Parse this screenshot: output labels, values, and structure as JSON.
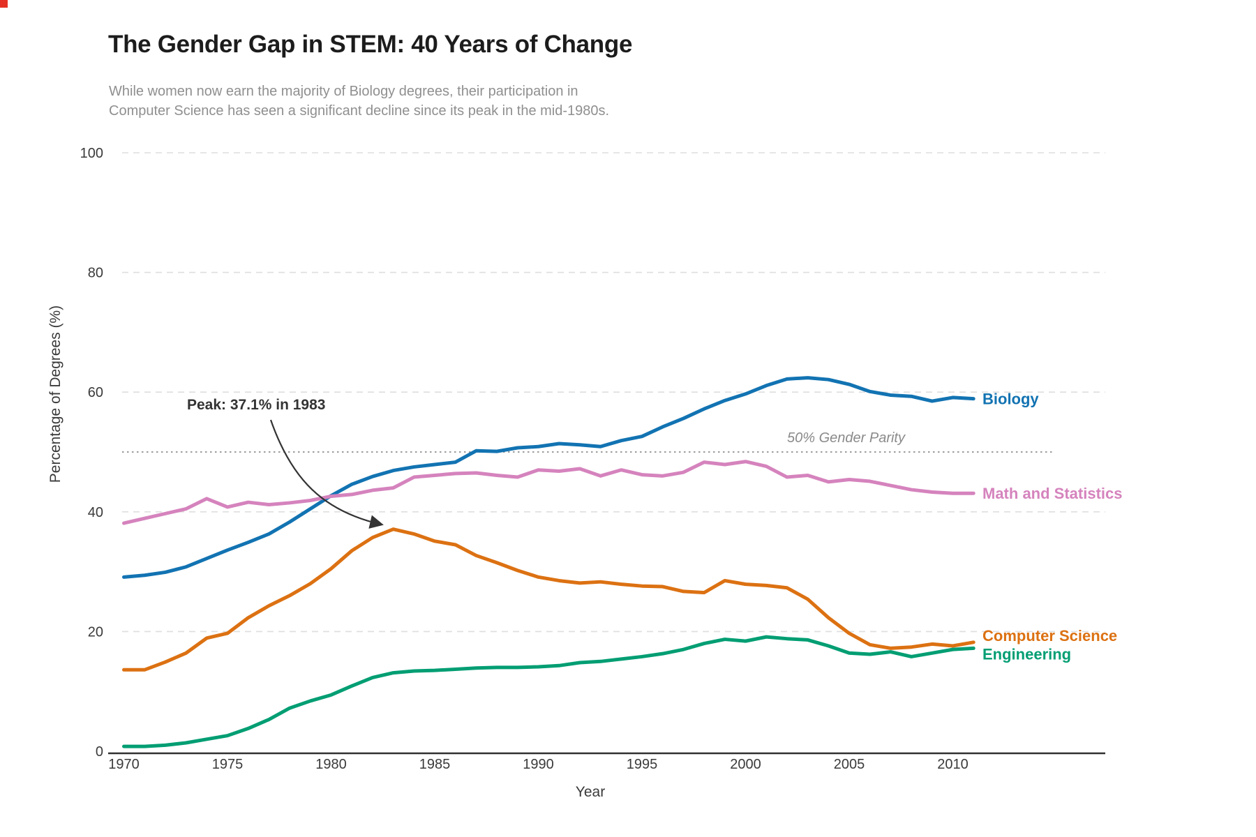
{
  "header": {
    "title": "The Gender Gap in STEM: 40 Years of Change",
    "subtitle_line1": "While women now earn the majority of Biology degrees, their participation in",
    "subtitle_line2": "Computer Science has seen a significant decline since its peak in the mid-1980s."
  },
  "chart_data": {
    "type": "line",
    "title": "The Gender Gap in STEM: 40 Years of Change",
    "xlabel": "Year",
    "ylabel": "Percentage of Degrees (%)",
    "xlim": [
      1970,
      2014.5
    ],
    "ylim": [
      0,
      100
    ],
    "xticks": [
      1970,
      1975,
      1980,
      1985,
      1990,
      1995,
      2000,
      2005,
      2010
    ],
    "yticks": [
      0,
      20,
      40,
      60,
      80,
      100
    ],
    "grid": "horizontal dashed at yticks, dotted reference at 50, legend as direct line labels right",
    "x": [
      1970,
      1971,
      1972,
      1973,
      1974,
      1975,
      1976,
      1977,
      1978,
      1979,
      1980,
      1981,
      1982,
      1983,
      1984,
      1985,
      1986,
      1987,
      1988,
      1989,
      1990,
      1991,
      1992,
      1993,
      1994,
      1995,
      1996,
      1997,
      1998,
      1999,
      2000,
      2001,
      2002,
      2003,
      2004,
      2005,
      2006,
      2007,
      2008,
      2009,
      2010,
      2011
    ],
    "series": [
      {
        "name": "Biology",
        "color": "#1273b2",
        "values": [
          29.1,
          29.4,
          29.9,
          30.8,
          32.2,
          33.6,
          34.9,
          36.3,
          38.3,
          40.5,
          42.7,
          44.6,
          45.9,
          46.9,
          47.5,
          47.9,
          48.3,
          50.2,
          50.1,
          50.7,
          50.9,
          51.4,
          51.2,
          50.9,
          51.9,
          52.6,
          54.2,
          55.6,
          57.2,
          58.6,
          59.7,
          61.1,
          62.2,
          62.4,
          62.1,
          61.3,
          60.1,
          59.5,
          59.3,
          58.5,
          59.1,
          58.9
        ]
      },
      {
        "name": "Math and Statistics",
        "color": "#d583bd",
        "values": [
          38.1,
          38.9,
          39.7,
          40.5,
          42.2,
          40.8,
          41.6,
          41.2,
          41.5,
          41.9,
          42.6,
          42.9,
          43.6,
          44.0,
          45.8,
          46.1,
          46.4,
          46.5,
          46.1,
          45.8,
          47.0,
          46.8,
          47.2,
          46.0,
          47.0,
          46.2,
          46.0,
          46.6,
          48.3,
          47.9,
          48.4,
          47.6,
          45.8,
          46.1,
          45.0,
          45.4,
          45.1,
          44.4,
          43.7,
          43.3,
          43.1,
          43.1
        ]
      },
      {
        "name": "Computer Science",
        "color": "#dc7112",
        "values": [
          13.6,
          13.6,
          14.9,
          16.4,
          18.9,
          19.7,
          22.3,
          24.3,
          26.0,
          28.0,
          30.5,
          33.5,
          35.7,
          37.1,
          36.3,
          35.1,
          34.5,
          32.7,
          31.5,
          30.2,
          29.1,
          28.5,
          28.1,
          28.3,
          27.9,
          27.6,
          27.5,
          26.7,
          26.5,
          28.5,
          27.9,
          27.7,
          27.3,
          25.4,
          22.3,
          19.7,
          17.8,
          17.2,
          17.4,
          17.9,
          17.6,
          18.2
        ]
      },
      {
        "name": "Engineering",
        "color": "#029e73",
        "values": [
          0.8,
          0.8,
          1.0,
          1.4,
          2.0,
          2.6,
          3.8,
          5.3,
          7.2,
          8.4,
          9.4,
          10.9,
          12.3,
          13.1,
          13.4,
          13.5,
          13.7,
          13.9,
          14.0,
          14.0,
          14.1,
          14.3,
          14.8,
          15.0,
          15.4,
          15.8,
          16.3,
          17.0,
          18.0,
          18.7,
          18.4,
          19.1,
          18.8,
          18.6,
          17.6,
          16.4,
          16.2,
          16.6,
          15.8,
          16.4,
          17.0,
          17.2
        ]
      }
    ],
    "reference_line": {
      "y": 50,
      "label": "50% Gender Parity"
    },
    "annotation": {
      "text": "Peak: 37.1% in 1983",
      "target_year": 1983,
      "target_value": 37.1
    }
  }
}
